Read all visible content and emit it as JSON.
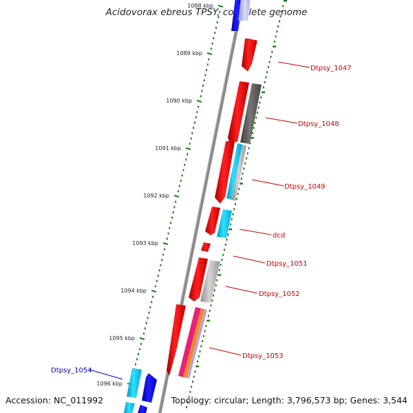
{
  "title": "Acidovorax ebreus TPSY, complete genome",
  "footer": {
    "accession": "Accession: NC_011992",
    "summary": "Topology: circular; Length: 3,796,573 bp; Genes: 3,544"
  },
  "colors": {
    "backbone": "#8a8a8a",
    "ruler_ticks": "#1e7d1e",
    "label_red": "#cc0000",
    "label_blue": "#0000cc"
  },
  "ruler": {
    "unit": "kbp",
    "labels": [
      "1088 kbp",
      "1089 kbp",
      "1090 kbp",
      "1091 kbp",
      "1092 kbp",
      "1093 kbp",
      "1094 kbp",
      "1095 kbp",
      "1096 kbp"
    ]
  },
  "gene_labels": [
    {
      "text": "Dtpsy_1047",
      "color": "red"
    },
    {
      "text": "Dtpsy_1048",
      "color": "red"
    },
    {
      "text": "Dtpsy_1049",
      "color": "red"
    },
    {
      "text": "dcd",
      "color": "red"
    },
    {
      "text": "Dtpsy_1051",
      "color": "red"
    },
    {
      "text": "Dtpsy_1052",
      "color": "red"
    },
    {
      "text": "Dtpsy_1053",
      "color": "red"
    },
    {
      "text": "Dtpsy_1054",
      "color": "blue"
    }
  ],
  "feature_colors": {
    "red": "#ee0000",
    "blue": "#0000ee",
    "cyan": "#00c8ee",
    "dark_gray": "#5a5a5a",
    "light_gray": "#b4b4b4",
    "magenta": "#e8207a",
    "orange": "#f08a20"
  }
}
